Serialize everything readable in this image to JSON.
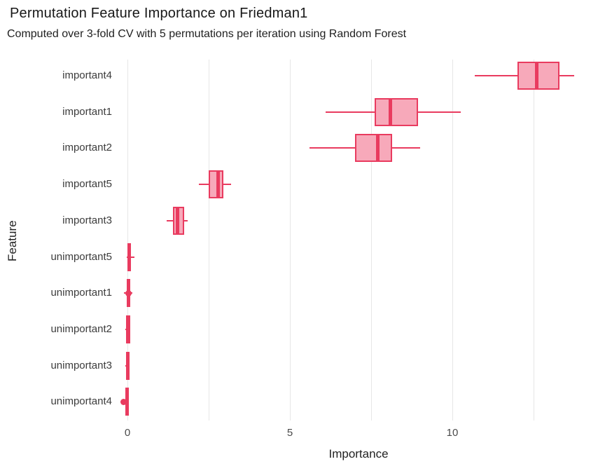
{
  "header": {
    "title": "Permutation Feature Importance on Friedman1",
    "subtitle": "Computed over 3-fold CV with 5 permutations per iteration using Random Forest"
  },
  "colors": {
    "box_stroke": "#e93b5f",
    "box_fill": "#f7a9ba",
    "gridline": "#e6e6e6",
    "title_text": "#181818",
    "label_text": "#3c3c3c"
  },
  "chart_data": {
    "type": "boxplot",
    "orientation": "horizontal",
    "title": "Permutation Feature Importance on Friedman1",
    "subtitle": "Computed over 3-fold CV with 5 permutations per iteration using Random Forest",
    "xlabel": "Importance",
    "ylabel": "Feature",
    "xlim": [
      -0.3,
      14.6
    ],
    "x_ticks": [
      0,
      5,
      10
    ],
    "x_gridlines": [
      0,
      2.5,
      5,
      7.5,
      10,
      12.5
    ],
    "grid": true,
    "legend": false,
    "categories": [
      "important4",
      "important1",
      "important2",
      "important5",
      "important3",
      "unimportant5",
      "unimportant1",
      "unimportant2",
      "unimportant3",
      "unimportant4"
    ],
    "series": [
      {
        "name": "important4",
        "whisker_low": 10.7,
        "q1": 12.0,
        "median": 12.6,
        "q3": 13.3,
        "whisker_high": 13.75,
        "outliers": []
      },
      {
        "name": "important1",
        "whisker_low": 6.1,
        "q1": 7.6,
        "median": 8.1,
        "q3": 8.95,
        "whisker_high": 10.25,
        "outliers": []
      },
      {
        "name": "important2",
        "whisker_low": 5.6,
        "q1": 7.0,
        "median": 7.7,
        "q3": 8.15,
        "whisker_high": 9.0,
        "outliers": []
      },
      {
        "name": "important5",
        "whisker_low": 2.2,
        "q1": 2.5,
        "median": 2.8,
        "q3": 2.95,
        "whisker_high": 3.2,
        "outliers": []
      },
      {
        "name": "important3",
        "whisker_low": 1.2,
        "q1": 1.4,
        "median": 1.55,
        "q3": 1.75,
        "whisker_high": 1.86,
        "outliers": []
      },
      {
        "name": "unimportant5",
        "whisker_low": -0.02,
        "q1": 0.01,
        "median": 0.05,
        "q3": 0.1,
        "whisker_high": 0.21,
        "outliers": []
      },
      {
        "name": "unimportant1",
        "whisker_low": -0.1,
        "q1": 0.0,
        "median": 0.04,
        "q3": 0.09,
        "whisker_high": 0.16,
        "outliers": [
          0.04
        ]
      },
      {
        "name": "unimportant2",
        "whisker_low": -0.06,
        "q1": -0.01,
        "median": 0.01,
        "q3": 0.04,
        "whisker_high": 0.08,
        "outliers": []
      },
      {
        "name": "unimportant3",
        "whisker_low": -0.07,
        "q1": -0.03,
        "median": 0.0,
        "q3": 0.02,
        "whisker_high": 0.05,
        "outliers": []
      },
      {
        "name": "unimportant4",
        "whisker_low": -0.12,
        "q1": -0.05,
        "median": -0.02,
        "q3": 0.02,
        "whisker_high": 0.05,
        "outliers": [
          -0.11
        ]
      }
    ]
  }
}
